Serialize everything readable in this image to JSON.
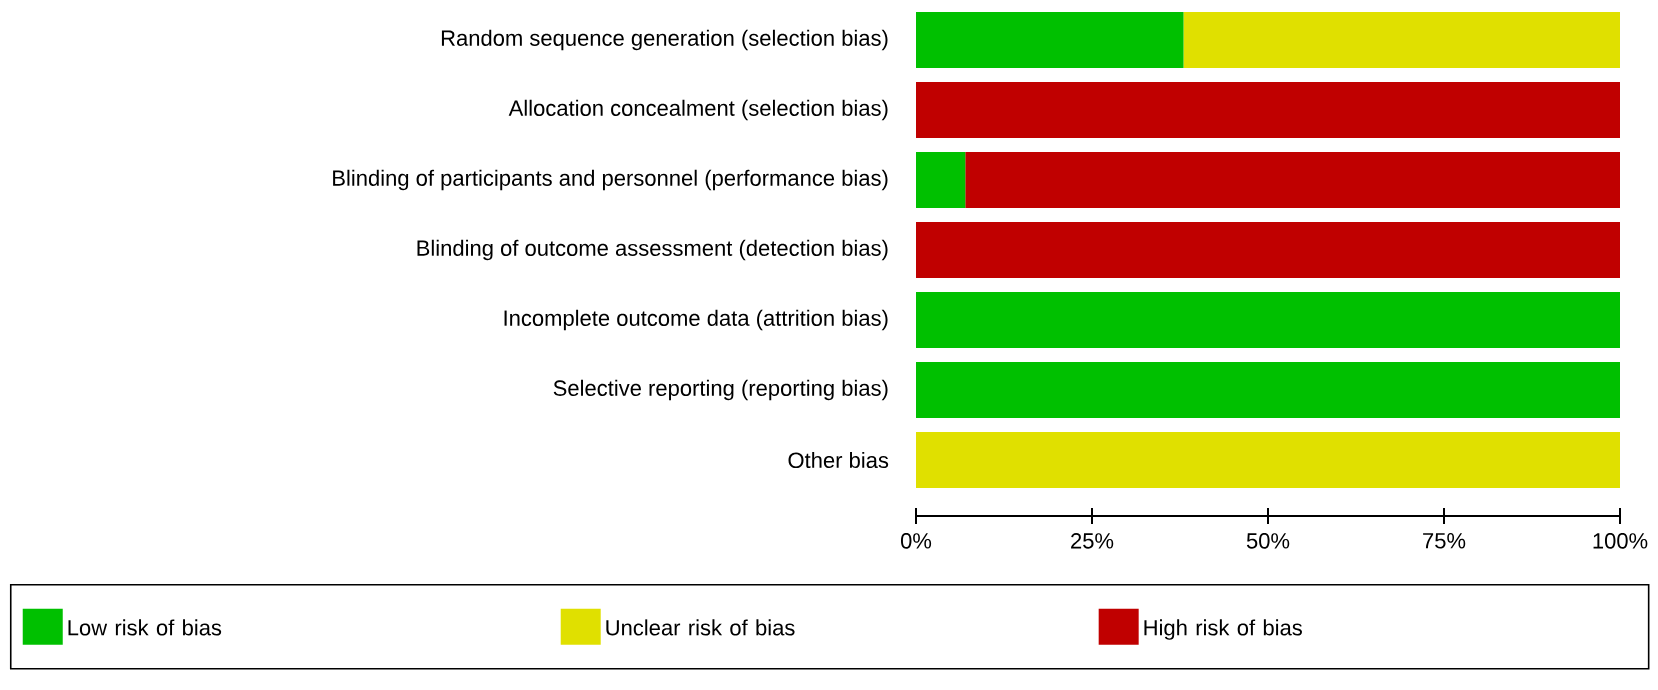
{
  "chart_data": {
    "type": "bar",
    "orientation": "horizontal",
    "stacked": true,
    "legend": "bottom",
    "categories": [
      "Random sequence generation (selection bias)",
      "Allocation concealment (selection bias)",
      "Blinding of participants and personnel (performance bias)",
      "Blinding of outcome assessment (detection bias)",
      "Incomplete outcome data (attrition bias)",
      "Selective reporting (reporting bias)",
      "Other bias"
    ],
    "series": [
      {
        "name": "Low risk of bias",
        "color": "#00c000",
        "values": [
          38,
          0,
          7,
          0,
          100,
          100,
          0
        ]
      },
      {
        "name": "Unclear risk of bias",
        "color": "#e0e000",
        "values": [
          62,
          0,
          0,
          0,
          0,
          0,
          100
        ]
      },
      {
        "name": "High risk of bias",
        "color": "#c00000",
        "values": [
          0,
          100,
          93,
          100,
          0,
          0,
          0
        ]
      }
    ],
    "xlim": [
      0,
      100
    ],
    "xticks": [
      {
        "value": 0,
        "label": "0%"
      },
      {
        "value": 25,
        "label": "25%"
      },
      {
        "value": 50,
        "label": "50%"
      },
      {
        "value": 75,
        "label": "75%"
      },
      {
        "value": 100,
        "label": "100%"
      }
    ]
  }
}
